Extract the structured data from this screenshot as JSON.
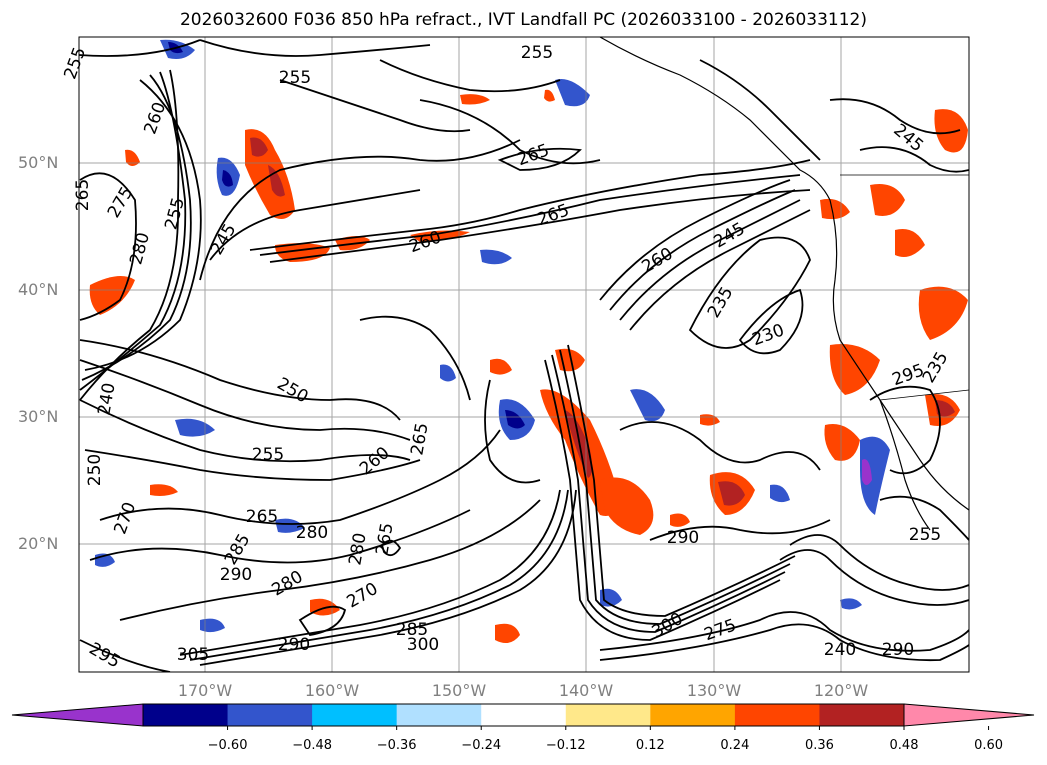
{
  "title": "2026032600 F036 850 hPa refract., IVT Landfall PC (2026033100 - 2026033112)",
  "map": {
    "lat_labels": [
      "50°N",
      "40°N",
      "30°N",
      "20°N"
    ],
    "lon_labels": [
      "170°W",
      "160°W",
      "150°W",
      "140°W",
      "130°W",
      "120°W"
    ],
    "contour_labels": [
      "255",
      "255",
      "260",
      "255",
      "265",
      "275",
      "265",
      "280",
      "245",
      "260",
      "265",
      "255",
      "245",
      "260",
      "235",
      "230",
      "240",
      "250",
      "255",
      "250",
      "260",
      "265",
      "270",
      "265",
      "280",
      "265",
      "280",
      "285",
      "290",
      "280",
      "270",
      "285",
      "300",
      "305",
      "290",
      "295",
      "300",
      "275",
      "290",
      "240",
      "290",
      "295",
      "235",
      "255",
      "245"
    ],
    "grid_color": "#808080",
    "coast_color": "#000000"
  },
  "colorbar": {
    "colors": [
      "#9933cc",
      "#00008b",
      "#3355cc",
      "#00bfff",
      "#b0e0ff",
      "#ffffff",
      "#ffe88a",
      "#ffa500",
      "#ff4500",
      "#b22222",
      "#ff88aa"
    ],
    "ticks": [
      "−0.60",
      "−0.48",
      "−0.36",
      "−0.24",
      "−0.12",
      "0.12",
      "0.24",
      "0.36",
      "0.48",
      "0.60"
    ]
  }
}
